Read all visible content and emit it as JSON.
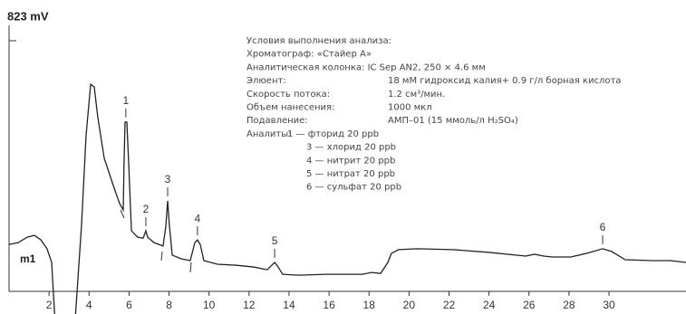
{
  "chart_data": {
    "type": "line",
    "color": "#222222",
    "xlim": [
      0,
      33.85
    ],
    "ylim": [
      0,
      823
    ],
    "xticks": [
      2,
      4,
      6,
      8,
      10,
      12,
      14,
      16,
      18,
      20,
      22,
      24,
      26,
      28,
      30
    ],
    "yticks": [
      {
        "value": 823,
        "label": "823 mV"
      }
    ],
    "marker_label": "m1",
    "x": [
      0,
      0.45,
      0.91,
      1.27,
      1.59,
      1.9,
      2.13,
      2.3,
      3.3,
      3.62,
      3.85,
      4.08,
      4.26,
      4.44,
      4.76,
      5.21,
      5.53,
      5.71,
      5.75,
      5.8,
      5.89,
      5.98,
      6.12,
      6.43,
      6.71,
      6.84,
      6.93,
      7.25,
      7.7,
      7.84,
      7.93,
      8.02,
      8.16,
      8.61,
      9.06,
      9.29,
      9.42,
      9.56,
      9.74,
      10.42,
      11.33,
      12.23,
      12.91,
      13.14,
      13.28,
      13.46,
      13.68,
      14.5,
      15.86,
      17.67,
      18.12,
      18.58,
      18.94,
      19.12,
      19.48,
      20.39,
      22.2,
      24.01,
      25.83,
      26.28,
      26.73,
      27.19,
      28.09,
      28.9,
      29.68,
      30.13,
      30.81,
      32.17,
      33.08,
      33.85
    ],
    "values": [
      154,
      160,
      178,
      184,
      169,
      140,
      95,
      -100,
      -100,
      214,
      511,
      680,
      671,
      570,
      437,
      348,
      288,
      267,
      422,
      556,
      556,
      422,
      199,
      178,
      175,
      199,
      178,
      160,
      149,
      214,
      297,
      214,
      119,
      107,
      101,
      160,
      169,
      154,
      101,
      89,
      86,
      80,
      71,
      86,
      95,
      80,
      56,
      53,
      56,
      56,
      62,
      59,
      95,
      125,
      137,
      140,
      137,
      128,
      116,
      122,
      116,
      113,
      113,
      125,
      140,
      131,
      104,
      101,
      101,
      95
    ],
    "peaks": [
      {
        "text": "1",
        "x": 5.84,
        "y": 556
      },
      {
        "text": "2",
        "x": 6.84,
        "y": 199
      },
      {
        "text": "3",
        "x": 7.93,
        "y": 297
      },
      {
        "text": "4",
        "x": 9.42,
        "y": 169
      },
      {
        "text": "5",
        "x": 13.28,
        "y": 95
      },
      {
        "text": "6",
        "x": 29.68,
        "y": 140
      }
    ],
    "conditions": {
      "title": "Условия выполнения анализа:",
      "rows": [
        [
          "Хроматограф: «Стайер А»"
        ],
        [
          "Аналитическая колонка: IC Sep AN2, 250 × 4.6 мм"
        ],
        [
          "Элюент:",
          "18 мМ гидроксид калия+ 0.9 г/л борная кислота"
        ],
        [
          "Скорость потока:",
          "1.2 см³/мин."
        ],
        [
          "Объем нанесения:",
          "1000 мкл"
        ],
        [
          "Подавление:",
          "АМП–01 (15 ммоль/л H₂SO₄)"
        ]
      ],
      "analytes_label": "Аналиты:",
      "analytes": [
        "1 — фторид 20 ppb",
        "3 — хлорид 20 ppb",
        "4 — нитрит 20 ppb",
        "5 — нитрат 20 ppb",
        "6 — сульфат 20 ppb"
      ]
    }
  }
}
